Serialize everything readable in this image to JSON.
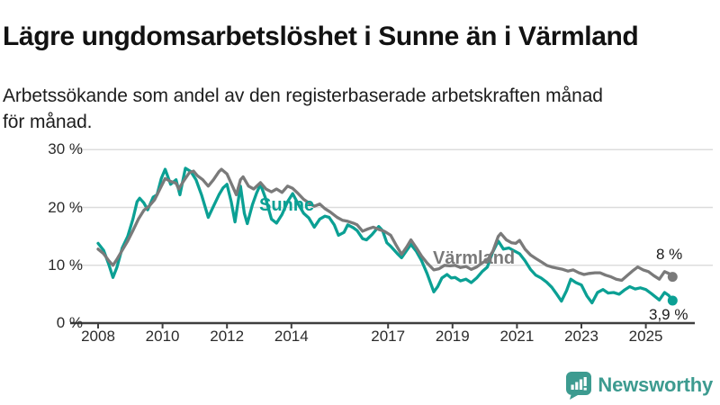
{
  "header": {
    "title": "Lägre ungdomsarbetslöshet i Sunne än i Värmland",
    "subtitle": "Arbetssökande som andel av den registerbaserade arbetskraften månad för månad."
  },
  "branding": {
    "logo_text": "Newsworthy",
    "brand_color": "#3d9b90"
  },
  "colors": {
    "sunne": "#0ba094",
    "varmland": "#7a7a7a",
    "grid": "#dcdcdc",
    "axis": "#3f3f3f",
    "tick_text": "#2b2b2b",
    "title_text": "#121212",
    "background": "#ffffff"
  },
  "chart_data": {
    "type": "line",
    "title": "Lägre ungdomsarbetslöshet i Sunne än i Värmland",
    "subtitle": "Arbetssökande som andel av den registerbaserade arbetskraften månad för månad.",
    "unit": "%",
    "grid": true,
    "legend_position": "inline-labels",
    "x_axis": {
      "label": "",
      "range": [
        2007.95,
        2026.1
      ],
      "tick_labels": [
        "2008",
        "2010",
        "2012",
        "2014",
        "2017",
        "2019",
        "2021",
        "2023",
        "2025"
      ],
      "tick_values": [
        2008,
        2010,
        2012,
        2014,
        2017,
        2019,
        2021,
        2023,
        2025
      ]
    },
    "y_axis": {
      "label": "",
      "range": [
        0,
        30
      ],
      "tick_labels": [
        "30 %",
        "20 %",
        "10 %",
        "0 %"
      ],
      "tick_values": [
        30,
        20,
        10,
        0
      ]
    },
    "series": [
      {
        "name": "Sunne",
        "color": "#0ba094",
        "end_label": "3,9 %",
        "end_value": 3.9,
        "points": [
          [
            2008.0,
            13.8
          ],
          [
            2008.17,
            12.6
          ],
          [
            2008.33,
            10.2
          ],
          [
            2008.46,
            7.9
          ],
          [
            2008.58,
            9.6
          ],
          [
            2008.75,
            13.0
          ],
          [
            2008.92,
            15.0
          ],
          [
            2009.08,
            18.0
          ],
          [
            2009.21,
            21.0
          ],
          [
            2009.29,
            21.6
          ],
          [
            2009.42,
            20.8
          ],
          [
            2009.54,
            19.6
          ],
          [
            2009.71,
            21.8
          ],
          [
            2009.83,
            22.2
          ],
          [
            2009.96,
            25.0
          ],
          [
            2010.08,
            26.6
          ],
          [
            2010.25,
            24.0
          ],
          [
            2010.42,
            24.8
          ],
          [
            2010.54,
            22.2
          ],
          [
            2010.71,
            26.8
          ],
          [
            2010.88,
            26.2
          ],
          [
            2011.04,
            24.8
          ],
          [
            2011.21,
            22.2
          ],
          [
            2011.42,
            18.3
          ],
          [
            2011.58,
            20.2
          ],
          [
            2011.75,
            22.2
          ],
          [
            2011.88,
            23.4
          ],
          [
            2012.0,
            24.0
          ],
          [
            2012.13,
            21.0
          ],
          [
            2012.25,
            17.5
          ],
          [
            2012.42,
            23.7
          ],
          [
            2012.54,
            19.0
          ],
          [
            2012.63,
            17.2
          ],
          [
            2012.79,
            20.5
          ],
          [
            2012.92,
            22.5
          ],
          [
            2013.04,
            24.0
          ],
          [
            2013.21,
            21.4
          ],
          [
            2013.38,
            18.0
          ],
          [
            2013.54,
            17.3
          ],
          [
            2013.71,
            18.8
          ],
          [
            2013.88,
            21.0
          ],
          [
            2014.04,
            22.4
          ],
          [
            2014.21,
            20.6
          ],
          [
            2014.38,
            19.0
          ],
          [
            2014.54,
            18.2
          ],
          [
            2014.71,
            16.6
          ],
          [
            2014.88,
            18.0
          ],
          [
            2015.04,
            18.5
          ],
          [
            2015.17,
            18.3
          ],
          [
            2015.33,
            17.0
          ],
          [
            2015.46,
            15.2
          ],
          [
            2015.63,
            15.7
          ],
          [
            2015.75,
            17.0
          ],
          [
            2015.92,
            16.5
          ],
          [
            2016.04,
            16.0
          ],
          [
            2016.21,
            14.6
          ],
          [
            2016.33,
            14.4
          ],
          [
            2016.5,
            15.3
          ],
          [
            2016.71,
            16.7
          ],
          [
            2016.83,
            16.0
          ],
          [
            2016.96,
            13.9
          ],
          [
            2017.08,
            13.3
          ],
          [
            2017.29,
            12.0
          ],
          [
            2017.42,
            11.3
          ],
          [
            2017.58,
            12.6
          ],
          [
            2017.71,
            13.6
          ],
          [
            2017.88,
            12.4
          ],
          [
            2018.04,
            10.8
          ],
          [
            2018.21,
            8.6
          ],
          [
            2018.42,
            5.4
          ],
          [
            2018.54,
            6.3
          ],
          [
            2018.67,
            7.8
          ],
          [
            2018.83,
            8.4
          ],
          [
            2018.96,
            7.8
          ],
          [
            2019.08,
            7.9
          ],
          [
            2019.25,
            7.3
          ],
          [
            2019.42,
            7.6
          ],
          [
            2019.58,
            7.0
          ],
          [
            2019.75,
            7.8
          ],
          [
            2019.92,
            8.9
          ],
          [
            2020.08,
            9.7
          ],
          [
            2020.25,
            12.3
          ],
          [
            2020.42,
            14.2
          ],
          [
            2020.58,
            12.8
          ],
          [
            2020.75,
            13.0
          ],
          [
            2020.88,
            12.6
          ],
          [
            2021.08,
            12.0
          ],
          [
            2021.25,
            10.8
          ],
          [
            2021.42,
            9.3
          ],
          [
            2021.58,
            8.3
          ],
          [
            2021.75,
            7.8
          ],
          [
            2021.92,
            7.1
          ],
          [
            2022.08,
            6.2
          ],
          [
            2022.21,
            5.2
          ],
          [
            2022.38,
            3.8
          ],
          [
            2022.54,
            5.6
          ],
          [
            2022.67,
            7.6
          ],
          [
            2022.83,
            7.0
          ],
          [
            2023.0,
            6.6
          ],
          [
            2023.17,
            4.7
          ],
          [
            2023.33,
            3.5
          ],
          [
            2023.5,
            5.3
          ],
          [
            2023.67,
            5.8
          ],
          [
            2023.83,
            5.2
          ],
          [
            2024.0,
            5.3
          ],
          [
            2024.17,
            5.0
          ],
          [
            2024.33,
            5.7
          ],
          [
            2024.5,
            6.3
          ],
          [
            2024.67,
            5.9
          ],
          [
            2024.83,
            6.1
          ],
          [
            2025.0,
            5.8
          ],
          [
            2025.17,
            5.1
          ],
          [
            2025.42,
            4.0
          ],
          [
            2025.58,
            5.3
          ],
          [
            2025.71,
            4.8
          ],
          [
            2025.83,
            3.9
          ]
        ]
      },
      {
        "name": "Värmland",
        "color": "#7a7a7a",
        "end_label": "8 %",
        "end_value": 8.0,
        "points": [
          [
            2008.0,
            12.8
          ],
          [
            2008.17,
            12.0
          ],
          [
            2008.33,
            10.8
          ],
          [
            2008.46,
            10.0
          ],
          [
            2008.58,
            11.0
          ],
          [
            2008.75,
            12.6
          ],
          [
            2008.92,
            14.2
          ],
          [
            2009.08,
            16.0
          ],
          [
            2009.25,
            18.0
          ],
          [
            2009.42,
            19.5
          ],
          [
            2009.58,
            20.2
          ],
          [
            2009.75,
            21.3
          ],
          [
            2009.92,
            23.2
          ],
          [
            2010.08,
            25.0
          ],
          [
            2010.25,
            24.5
          ],
          [
            2010.42,
            24.2
          ],
          [
            2010.5,
            23.2
          ],
          [
            2010.67,
            24.7
          ],
          [
            2010.83,
            26.0
          ],
          [
            2010.96,
            26.3
          ],
          [
            2011.08,
            25.5
          ],
          [
            2011.25,
            24.8
          ],
          [
            2011.42,
            23.7
          ],
          [
            2011.58,
            24.8
          ],
          [
            2011.75,
            26.2
          ],
          [
            2011.83,
            26.6
          ],
          [
            2012.0,
            25.8
          ],
          [
            2012.17,
            23.7
          ],
          [
            2012.29,
            22.2
          ],
          [
            2012.42,
            24.8
          ],
          [
            2012.5,
            25.3
          ],
          [
            2012.67,
            23.7
          ],
          [
            2012.83,
            23.2
          ],
          [
            2013.04,
            24.3
          ],
          [
            2013.21,
            23.2
          ],
          [
            2013.38,
            22.7
          ],
          [
            2013.54,
            23.2
          ],
          [
            2013.71,
            22.6
          ],
          [
            2013.88,
            23.7
          ],
          [
            2014.04,
            23.3
          ],
          [
            2014.21,
            22.4
          ],
          [
            2014.38,
            21.4
          ],
          [
            2014.54,
            20.8
          ],
          [
            2014.71,
            20.2
          ],
          [
            2014.88,
            20.6
          ],
          [
            2015.04,
            19.8
          ],
          [
            2015.21,
            19.2
          ],
          [
            2015.42,
            18.3
          ],
          [
            2015.58,
            17.8
          ],
          [
            2015.75,
            17.6
          ],
          [
            2015.92,
            17.3
          ],
          [
            2016.04,
            17.0
          ],
          [
            2016.21,
            15.9
          ],
          [
            2016.38,
            16.3
          ],
          [
            2016.54,
            16.6
          ],
          [
            2016.71,
            16.2
          ],
          [
            2016.88,
            15.9
          ],
          [
            2017.08,
            15.2
          ],
          [
            2017.25,
            13.5
          ],
          [
            2017.42,
            11.9
          ],
          [
            2017.58,
            13.2
          ],
          [
            2017.71,
            14.4
          ],
          [
            2017.88,
            13.0
          ],
          [
            2018.04,
            11.6
          ],
          [
            2018.21,
            10.4
          ],
          [
            2018.42,
            9.2
          ],
          [
            2018.58,
            9.4
          ],
          [
            2018.75,
            10.0
          ],
          [
            2018.92,
            9.9
          ],
          [
            2019.08,
            10.0
          ],
          [
            2019.25,
            9.6
          ],
          [
            2019.42,
            9.8
          ],
          [
            2019.58,
            9.3
          ],
          [
            2019.75,
            9.7
          ],
          [
            2019.92,
            10.4
          ],
          [
            2020.08,
            10.9
          ],
          [
            2020.25,
            12.4
          ],
          [
            2020.42,
            15.0
          ],
          [
            2020.5,
            15.5
          ],
          [
            2020.67,
            14.4
          ],
          [
            2020.83,
            13.9
          ],
          [
            2020.96,
            13.8
          ],
          [
            2021.08,
            14.3
          ],
          [
            2021.25,
            12.8
          ],
          [
            2021.42,
            11.8
          ],
          [
            2021.58,
            11.2
          ],
          [
            2021.75,
            10.6
          ],
          [
            2021.92,
            10.0
          ],
          [
            2022.08,
            9.7
          ],
          [
            2022.25,
            9.5
          ],
          [
            2022.42,
            9.3
          ],
          [
            2022.58,
            9.0
          ],
          [
            2022.75,
            9.2
          ],
          [
            2022.92,
            8.7
          ],
          [
            2023.08,
            8.4
          ],
          [
            2023.25,
            8.6
          ],
          [
            2023.42,
            8.7
          ],
          [
            2023.58,
            8.7
          ],
          [
            2023.75,
            8.3
          ],
          [
            2023.92,
            8.0
          ],
          [
            2024.08,
            7.6
          ],
          [
            2024.25,
            7.4
          ],
          [
            2024.42,
            8.2
          ],
          [
            2024.58,
            9.0
          ],
          [
            2024.75,
            9.7
          ],
          [
            2024.92,
            9.2
          ],
          [
            2025.08,
            8.9
          ],
          [
            2025.25,
            8.2
          ],
          [
            2025.42,
            7.6
          ],
          [
            2025.58,
            8.9
          ],
          [
            2025.71,
            8.6
          ],
          [
            2025.83,
            8.0
          ]
        ]
      }
    ]
  }
}
